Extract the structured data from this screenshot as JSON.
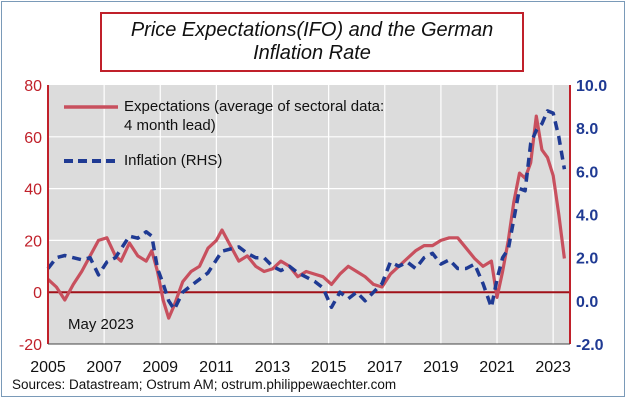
{
  "title_line1": "Price Expectations(IFO) and the German",
  "title_line2": "Inflation Rate",
  "note": "May 2023",
  "source": "Sources: Datastream;  Ostrum  AM; ostrum.philippewaechter.com",
  "colors": {
    "expectations": "#c8505e",
    "inflation": "#1f3a93",
    "axis_left": "#c0202a",
    "axis_right": "#1f3a93",
    "plot_bg": "#dcdcdc",
    "grid": "#ffffff"
  },
  "chart_data": {
    "type": "line",
    "title": "Price Expectations(IFO) and the German Inflation Rate",
    "xlim": [
      2005,
      2023.6
    ],
    "x_ticks": [
      2005,
      2007,
      2009,
      2011,
      2013,
      2015,
      2017,
      2019,
      2021,
      2023
    ],
    "x_tick_labels": [
      "2005",
      "2007",
      "2009",
      "2011",
      "2013",
      "2015",
      "2017",
      "2019",
      "2021",
      "2023"
    ],
    "y_left": {
      "lim": [
        -20,
        80
      ],
      "ticks": [
        -20,
        0,
        20,
        40,
        60,
        80
      ],
      "tick_labels": [
        "-20",
        "0",
        "20",
        "40",
        "60",
        "80"
      ]
    },
    "y_right": {
      "lim": [
        -2,
        10
      ],
      "ticks": [
        -2,
        0,
        2,
        4,
        6,
        8,
        10
      ],
      "tick_labels": [
        "-2.0",
        "0.0",
        "2.0",
        "4.0",
        "6.0",
        "8.0",
        "10.0"
      ]
    },
    "grid": true,
    "legend_position": "top-left",
    "series": [
      {
        "name": "Expectations (average of sectoral data:",
        "name_line2": "4 month lead)",
        "axis": "left",
        "style": "solid",
        "x": [
          2005.0,
          2005.3,
          2005.6,
          2005.9,
          2006.2,
          2006.5,
          2006.8,
          2007.1,
          2007.4,
          2007.6,
          2007.9,
          2008.2,
          2008.5,
          2008.7,
          2008.9,
          2009.1,
          2009.3,
          2009.5,
          2009.8,
          2010.1,
          2010.4,
          2010.7,
          2011.0,
          2011.2,
          2011.5,
          2011.8,
          2012.1,
          2012.4,
          2012.7,
          2013.0,
          2013.3,
          2013.6,
          2013.9,
          2014.2,
          2014.5,
          2014.8,
          2015.1,
          2015.4,
          2015.7,
          2016.0,
          2016.3,
          2016.6,
          2016.9,
          2017.2,
          2017.5,
          2017.8,
          2018.1,
          2018.4,
          2018.7,
          2019.0,
          2019.3,
          2019.6,
          2019.9,
          2020.2,
          2020.5,
          2020.8,
          2021.0,
          2021.2,
          2021.4,
          2021.6,
          2021.8,
          2022.0,
          2022.2,
          2022.4,
          2022.6,
          2022.8,
          2023.0,
          2023.2,
          2023.4
        ],
        "y": [
          5,
          2,
          -3,
          3,
          8,
          14,
          20,
          21,
          14,
          12,
          19,
          14,
          12,
          16,
          8,
          -3,
          -10,
          -5,
          4,
          8,
          10,
          17,
          20,
          24,
          18,
          12,
          14,
          10,
          8,
          9,
          12,
          10,
          6,
          8,
          7,
          6,
          3,
          7,
          10,
          8,
          6,
          3,
          2,
          7,
          10,
          13,
          16,
          18,
          18,
          20,
          21,
          21,
          17,
          13,
          10,
          12,
          -2,
          8,
          20,
          35,
          46,
          44,
          50,
          68,
          55,
          52,
          45,
          30,
          13
        ]
      },
      {
        "name": "Inflation (RHS)",
        "axis": "right",
        "style": "dashed",
        "x": [
          2005.0,
          2005.3,
          2005.6,
          2005.9,
          2006.2,
          2006.5,
          2006.8,
          2007.1,
          2007.4,
          2007.6,
          2007.9,
          2008.2,
          2008.5,
          2008.7,
          2008.9,
          2009.1,
          2009.3,
          2009.5,
          2009.8,
          2010.1,
          2010.4,
          2010.7,
          2011.0,
          2011.2,
          2011.5,
          2011.8,
          2012.1,
          2012.4,
          2012.7,
          2013.0,
          2013.3,
          2013.6,
          2013.9,
          2014.2,
          2014.5,
          2014.8,
          2015.1,
          2015.4,
          2015.7,
          2016.0,
          2016.3,
          2016.6,
          2016.9,
          2017.2,
          2017.5,
          2017.8,
          2018.1,
          2018.4,
          2018.7,
          2019.0,
          2019.3,
          2019.6,
          2019.9,
          2020.2,
          2020.5,
          2020.8,
          2021.0,
          2021.2,
          2021.4,
          2021.6,
          2021.8,
          2022.0,
          2022.2,
          2022.4,
          2022.6,
          2022.8,
          2023.0,
          2023.2,
          2023.4
        ],
        "y": [
          1.5,
          2.0,
          2.1,
          2.0,
          1.9,
          2.0,
          1.2,
          1.8,
          2.0,
          2.4,
          3.0,
          2.9,
          3.2,
          3.0,
          1.5,
          0.8,
          0.0,
          -0.4,
          0.4,
          0.7,
          1.0,
          1.3,
          1.9,
          2.3,
          2.4,
          2.5,
          2.2,
          2.0,
          2.0,
          1.6,
          1.4,
          1.6,
          1.3,
          1.1,
          0.9,
          0.6,
          -0.3,
          0.4,
          0.1,
          0.4,
          0.0,
          0.4,
          0.8,
          1.8,
          1.6,
          1.8,
          1.5,
          2.0,
          2.2,
          1.7,
          1.9,
          1.5,
          1.5,
          1.7,
          0.8,
          -0.3,
          1.0,
          2.0,
          2.4,
          3.8,
          5.2,
          5.1,
          7.3,
          7.9,
          8.2,
          8.8,
          8.7,
          7.6,
          6.1
        ]
      }
    ]
  }
}
